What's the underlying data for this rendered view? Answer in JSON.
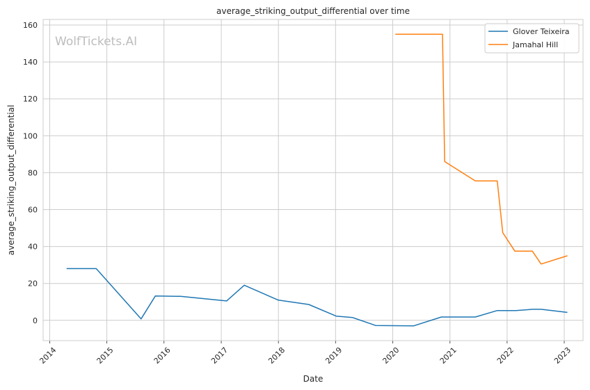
{
  "chart_data": {
    "type": "line",
    "title": "average_striking_output_differential over time",
    "xlabel": "Date",
    "ylabel": "average_striking_output_differential",
    "watermark": "WolfTickets.AI",
    "xlim": [
      "2013-11-20",
      "2023-05-01"
    ],
    "ylim": [
      -11,
      163
    ],
    "x_ticks": [
      "2014",
      "2015",
      "2016",
      "2017",
      "2018",
      "2019",
      "2020",
      "2021",
      "2022",
      "2023"
    ],
    "y_ticks": [
      0,
      20,
      40,
      60,
      80,
      100,
      120,
      140,
      160
    ],
    "grid": true,
    "legend_position": "top-right",
    "colors": {
      "series1": "#1f77b4",
      "series2": "#ff7f0e",
      "grid": "#cccccc",
      "frame": "#cccccc"
    },
    "series": [
      {
        "name": "Glover Teixeira",
        "points": [
          [
            "2014-04-19",
            28.0
          ],
          [
            "2014-10-25",
            28.0
          ],
          [
            "2015-08-08",
            0.8
          ],
          [
            "2015-11-07",
            13.2
          ],
          [
            "2016-04-16",
            13.0
          ],
          [
            "2017-02-04",
            10.5
          ],
          [
            "2017-05-28",
            19.0
          ],
          [
            "2017-12-30",
            11.0
          ],
          [
            "2018-07-14",
            8.6
          ],
          [
            "2019-01-05",
            2.3
          ],
          [
            "2019-04-20",
            1.5
          ],
          [
            "2019-09-14",
            -2.8
          ],
          [
            "2020-05-13",
            -3.0
          ],
          [
            "2020-11-07",
            1.8
          ],
          [
            "2021-06-12",
            1.8
          ],
          [
            "2021-10-30",
            5.3
          ],
          [
            "2022-02-26",
            5.3
          ],
          [
            "2022-06-12",
            6.0
          ],
          [
            "2022-08-06",
            6.0
          ],
          [
            "2023-01-21",
            4.3
          ]
        ]
      },
      {
        "name": "Jamahal Hill",
        "points": [
          [
            "2020-01-18",
            155.0
          ],
          [
            "2020-11-14",
            155.0
          ],
          [
            "2020-11-28",
            86.0
          ],
          [
            "2021-06-12",
            75.5
          ],
          [
            "2021-10-30",
            75.5
          ],
          [
            "2021-12-04",
            47.5
          ],
          [
            "2022-02-19",
            37.5
          ],
          [
            "2022-06-11",
            37.5
          ],
          [
            "2022-08-06",
            30.5
          ],
          [
            "2023-01-21",
            35.0
          ]
        ]
      }
    ]
  }
}
